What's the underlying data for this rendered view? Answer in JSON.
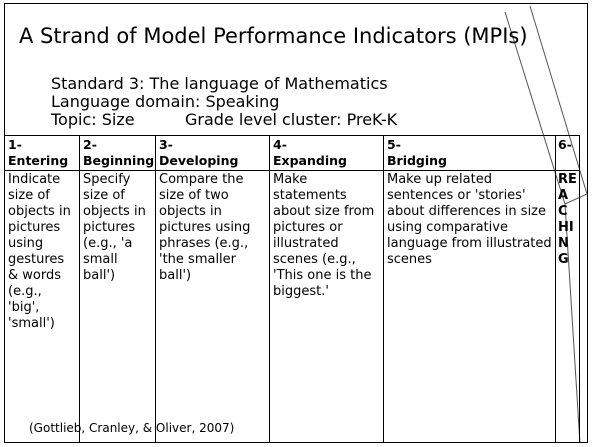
{
  "title": "A Strand of Model Performance Indicators (MPIs)",
  "standard": "Standard 3: The language of Mathematics",
  "domain": "Language domain: Speaking",
  "topic": "Topic: Size",
  "grade": "Grade level cluster: PreK-K",
  "table": {
    "columns": [
      {
        "number": "1-",
        "level": "Entering"
      },
      {
        "number": "2-",
        "level": "Beginning"
      },
      {
        "number": "3-",
        "level": "Developing"
      },
      {
        "number": "4-",
        "level": "Expanding"
      },
      {
        "number": "5-",
        "level": "Bridging"
      },
      {
        "number": "6-"
      }
    ],
    "rows": [
      [
        "Indicate size of objects in pictures using gestures & words (e.g., 'big', 'small')",
        "Specify size of objects in pictures (e.g., 'a small ball')",
        "Compare the size of two objects in pictures using phrases (e.g., 'the smaller ball')",
        "Make statements about size from pictures or illustrated scenes (e.g., 'This one is the biggest.'",
        "Make up related sentences or 'stories' about differences in size using comparative language from illustrated scenes",
        "REACHING"
      ]
    ]
  },
  "citation": "(Gottlieb, Cranley, & Oliver, 2007)"
}
